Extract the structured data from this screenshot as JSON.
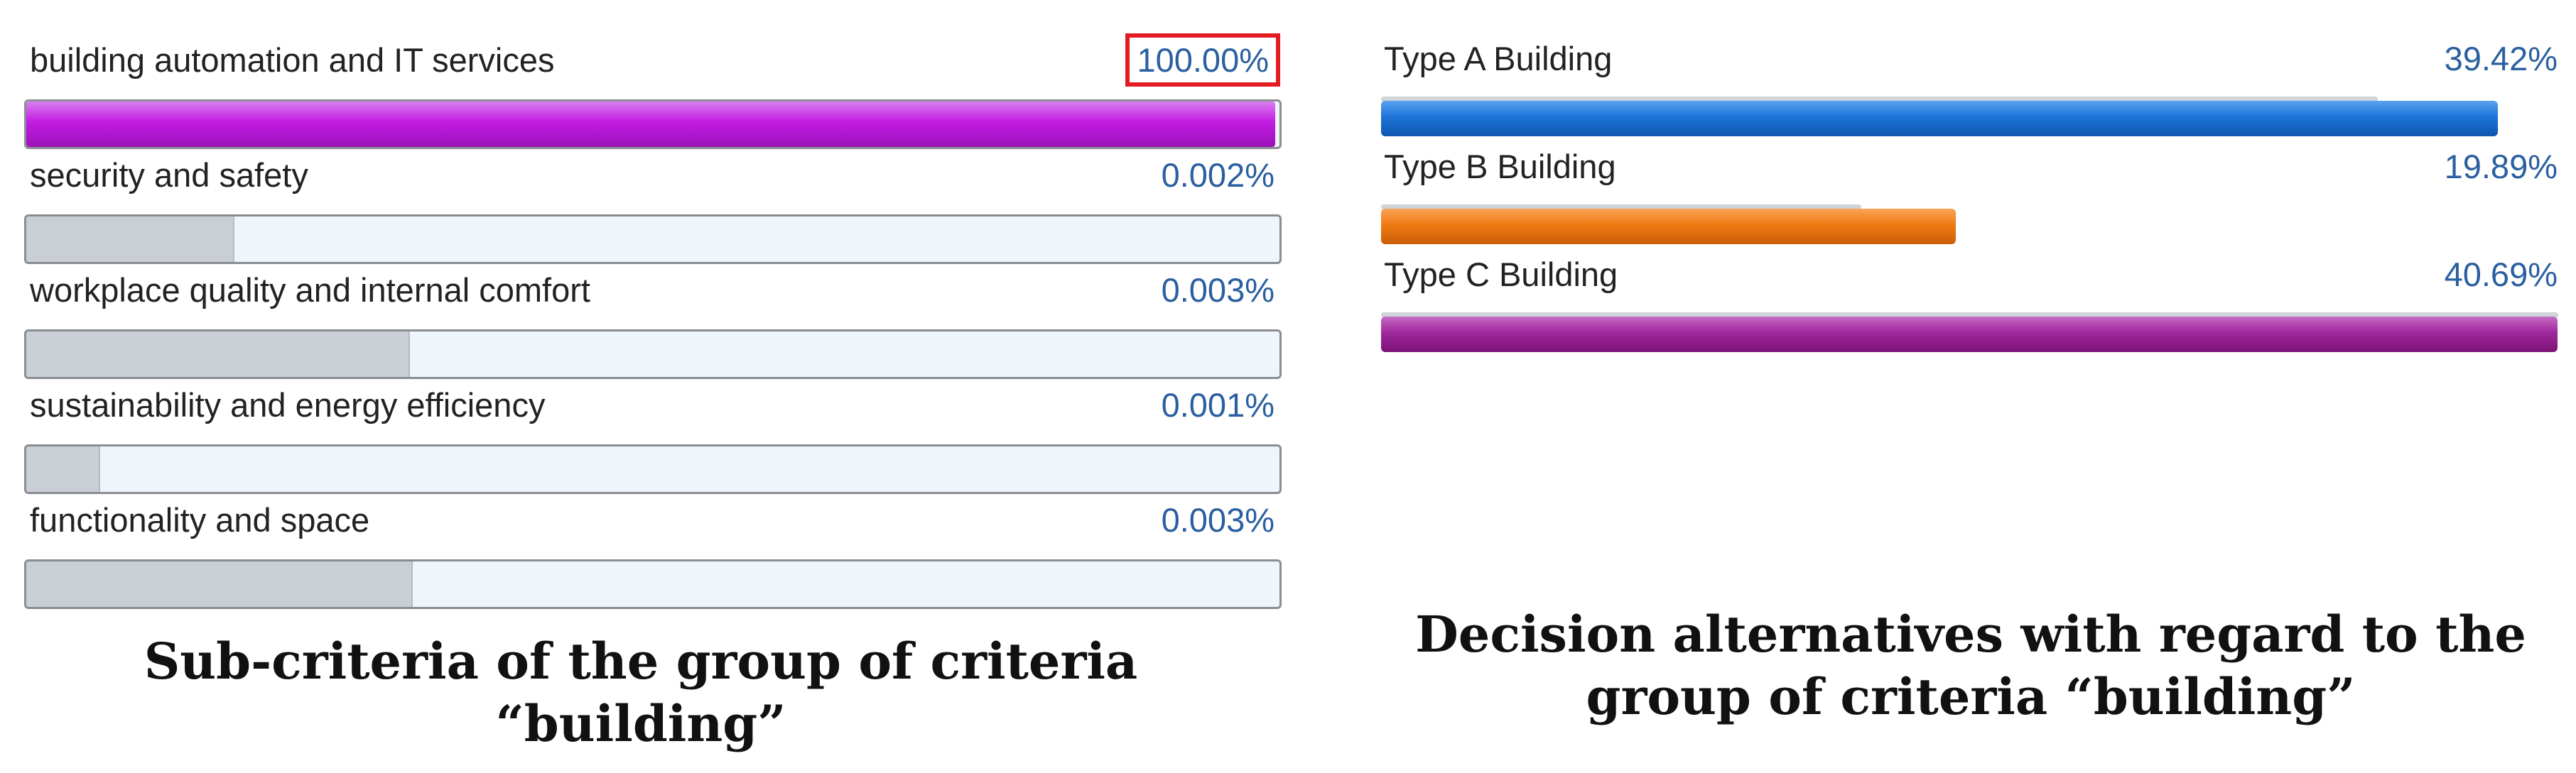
{
  "chart_data": [
    {
      "type": "bar",
      "caption": "Sub-criteria of the group of criteria “building”",
      "categories": [
        "building automation and IT services",
        "security and safety",
        "workplace quality and internal comfort",
        "sustainability and energy efficiency",
        "functionality and space"
      ],
      "value_labels": [
        "100.00%",
        "0.002%",
        "0.003%",
        "0.001%",
        "0.003%"
      ],
      "values": [
        100.0,
        0.002,
        0.003,
        0.001,
        0.003
      ],
      "reference_fill_fraction": [
        0.17,
        0.165,
        0.305,
        0.058,
        0.307
      ],
      "bar_colors": [
        "#c31be3",
        null,
        null,
        null,
        null
      ],
      "highlighted_index": 0,
      "highlight_color": "#e31b23"
    },
    {
      "type": "bar",
      "caption": "Decision alternatives with regard to the group of criteria “building”",
      "categories": [
        "Type A Building",
        "Type B Building",
        "Type C Building"
      ],
      "value_labels": [
        "39.42%",
        "19.89%",
        "40.69%"
      ],
      "values": [
        39.42,
        19.89,
        40.69
      ],
      "reference_fill_fraction": [
        0.845,
        0.407,
        0.998
      ],
      "bar_colors": [
        "#1d74d8",
        "#f07a12",
        "#a0289c"
      ]
    }
  ]
}
